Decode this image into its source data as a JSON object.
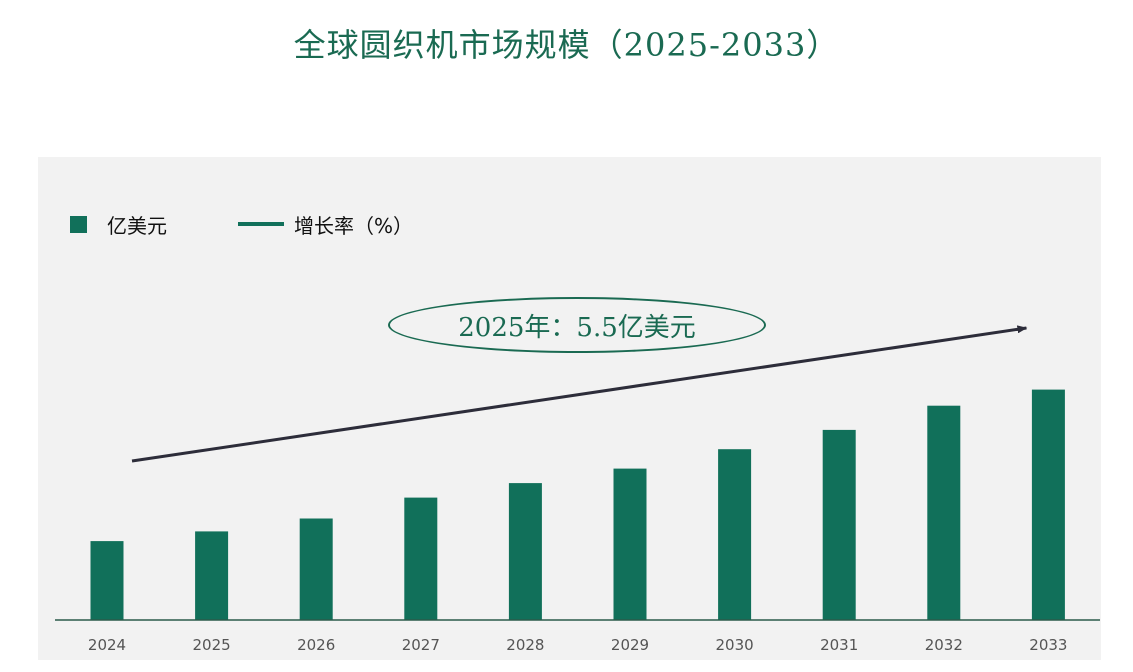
{
  "title": "全球圆织机市场规模（2025-2033）",
  "legend": {
    "unit": "亿美元",
    "growth": "增长率（%）"
  },
  "annotation": "2025年：5.5亿美元",
  "colors": {
    "bar": "#11705a",
    "title": "#1a6a52",
    "arrow": "#2d2d3a",
    "panel": "#f2f2f2"
  },
  "chart_data": {
    "type": "bar",
    "title": "全球圆织机市场规模（2025-2033）",
    "categories": [
      "2024",
      "2025",
      "2026",
      "2027",
      "2028",
      "2029",
      "2030",
      "2031",
      "2032",
      "2033"
    ],
    "series": [
      {
        "name": "亿美元",
        "values": [
          4.9,
          5.5,
          6.3,
          7.6,
          8.5,
          9.4,
          10.6,
          11.8,
          13.3,
          14.3
        ]
      }
    ],
    "ylim": [
      0,
      18
    ],
    "grid": false,
    "legend": "top-left",
    "trend_arrow": {
      "from": "2024",
      "to": "2033"
    }
  }
}
